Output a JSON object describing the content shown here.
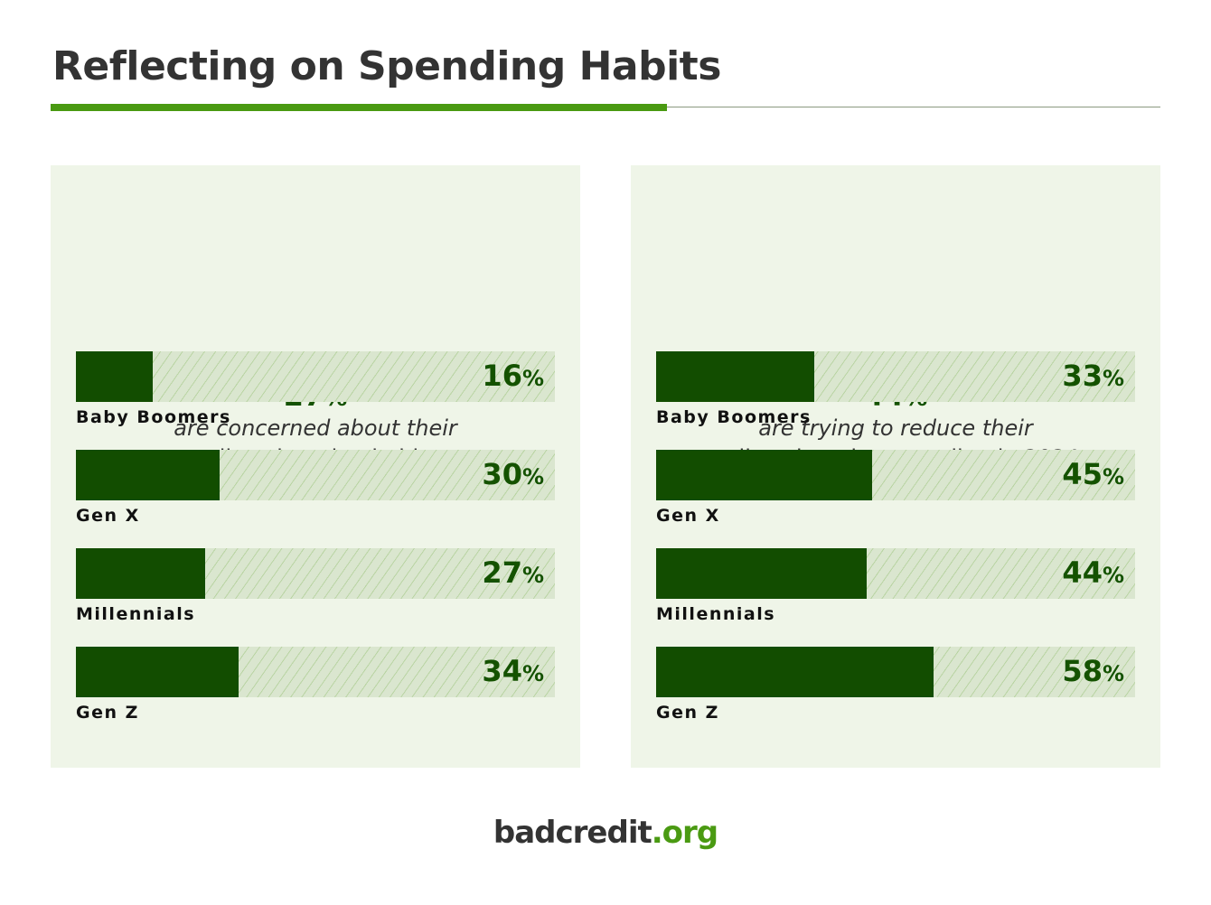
{
  "title": "Reflecting on Spending Habits",
  "colors": {
    "accent": "#4a9a12",
    "bar_fill": "#124d00",
    "track": "#dae6cf",
    "panel": "#eff5e8"
  },
  "logo": {
    "name": "badcredit",
    "tld": ".org"
  },
  "chart_data": [
    {
      "type": "bar",
      "orientation": "horizontal",
      "headline_value": "27",
      "headline_unit": "%",
      "description_italic": "are concerned about their",
      "description": "online shopping habits",
      "categories": [
        "Baby Boomers",
        "Gen X",
        "Millennials",
        "Gen Z"
      ],
      "values": [
        16,
        30,
        27,
        34
      ],
      "unit": "%",
      "xlim": [
        0,
        100
      ]
    },
    {
      "type": "bar",
      "orientation": "horizontal",
      "headline_value": "44",
      "headline_unit": "%",
      "description_italic": "are trying to reduce their",
      "description": "online shopping spending in 2024",
      "categories": [
        "Baby Boomers",
        "Gen X",
        "Millennials",
        "Gen Z"
      ],
      "values": [
        33,
        45,
        44,
        58
      ],
      "unit": "%",
      "xlim": [
        0,
        100
      ]
    }
  ]
}
